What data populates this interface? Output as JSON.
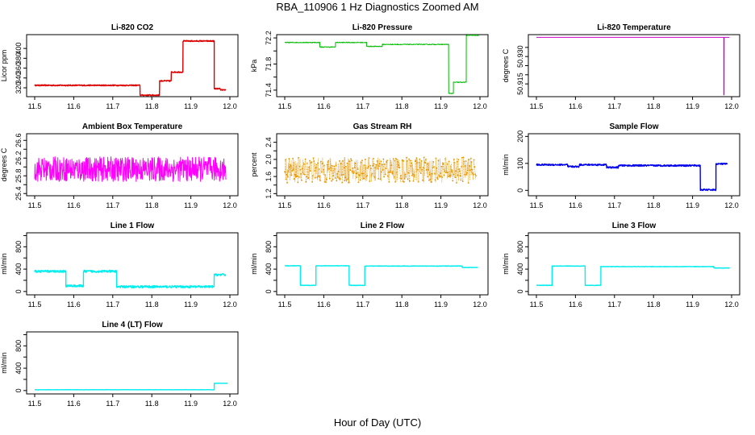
{
  "figure": {
    "title": "RBA_110906  1 Hz Diagnostics Zoomed AM",
    "xlabel": "Hour of Day (UTC)"
  },
  "chart_data": [
    {
      "id": "co2",
      "type": "line",
      "title": "Li-820 CO2",
      "ylabel": "Licor ppm",
      "color": "#dd0000",
      "xlim": [
        11.5,
        12.0
      ],
      "ylim": [
        302,
        428
      ],
      "xticks": [
        11.5,
        11.6,
        11.7,
        11.8,
        11.9,
        12.0
      ],
      "yticks": [
        320,
        340,
        360,
        380,
        400
      ],
      "noise": 1.2,
      "segments": [
        [
          11.5,
          11.77,
          325
        ],
        [
          11.77,
          11.82,
          305
        ],
        [
          11.82,
          11.85,
          334
        ],
        [
          11.85,
          11.88,
          352
        ],
        [
          11.88,
          11.96,
          415
        ],
        [
          11.96,
          11.975,
          318
        ],
        [
          11.975,
          11.99,
          316
        ]
      ]
    },
    {
      "id": "pressure",
      "type": "line",
      "title": "Li-820 Pressure",
      "ylabel": "kPa",
      "color": "#00bb00",
      "xlim": [
        11.5,
        12.0
      ],
      "ylim": [
        71.3,
        72.25
      ],
      "xticks": [
        11.5,
        11.6,
        11.7,
        11.8,
        11.9,
        12.0
      ],
      "yticks": [
        71.4,
        71.6,
        71.8,
        72.0,
        72.2
      ],
      "ytick_labels": [
        "71.4",
        "",
        "71.8",
        "",
        "72.2"
      ],
      "noise": 0.006,
      "segments": [
        [
          11.5,
          11.59,
          72.13
        ],
        [
          11.59,
          11.63,
          72.06
        ],
        [
          11.63,
          11.71,
          72.13
        ],
        [
          11.71,
          11.75,
          72.07
        ],
        [
          11.75,
          11.92,
          72.1
        ],
        [
          11.92,
          11.932,
          71.35
        ],
        [
          11.932,
          11.965,
          71.52
        ],
        [
          11.965,
          11.998,
          72.24
        ]
      ]
    },
    {
      "id": "li820temp",
      "type": "line",
      "title": "Li-820 Temperature",
      "ylabel": "degrees C",
      "color": "#cc00cc",
      "xlim": [
        11.5,
        12.0
      ],
      "ylim": [
        50.908,
        50.942
      ],
      "xticks": [
        11.5,
        11.6,
        11.7,
        11.8,
        11.9,
        12.0
      ],
      "yticks": [
        50.915,
        50.92,
        50.925,
        50.93,
        50.935
      ],
      "ytick_labels": [
        "50.915",
        "",
        "",
        "50.930",
        ""
      ],
      "noise": 0,
      "segments": [
        [
          11.5,
          11.98,
          50.9405
        ],
        [
          11.98,
          11.981,
          50.909
        ],
        [
          11.981,
          11.995,
          50.9405
        ]
      ]
    },
    {
      "id": "boxtemp",
      "type": "line",
      "title": "Ambient Box Temperature",
      "ylabel": "degrees C",
      "color": "#ff00ff",
      "xlim": [
        11.5,
        12.0
      ],
      "ylim": [
        25.35,
        26.75
      ],
      "xticks": [
        11.5,
        11.6,
        11.7,
        11.8,
        11.9,
        12.0
      ],
      "yticks": [
        25.4,
        25.6,
        25.8,
        26.0,
        26.2,
        26.4,
        26.6
      ],
      "ytick_labels": [
        "25.4",
        "",
        "25.8",
        "",
        "26.2",
        "",
        "26.6"
      ],
      "noise": 0.28,
      "segments": [
        [
          11.5,
          11.99,
          25.95
        ]
      ]
    },
    {
      "id": "rh",
      "type": "scatter",
      "title": "Gas Stream RH",
      "ylabel": "percent",
      "color": "#e69500",
      "xlim": [
        11.5,
        12.0
      ],
      "ylim": [
        1.15,
        2.6
      ],
      "xticks": [
        11.5,
        11.6,
        11.7,
        11.8,
        11.9,
        12.0
      ],
      "yticks": [
        1.2,
        1.4,
        1.6,
        1.8,
        2.0,
        2.2,
        2.4
      ],
      "ytick_labels": [
        "1.2",
        "",
        "1.6",
        "",
        "2.0",
        "",
        "2.4"
      ],
      "noise": 0.3,
      "segments": [
        [
          11.5,
          11.99,
          1.75
        ]
      ]
    },
    {
      "id": "sample",
      "type": "line",
      "title": "Sample Flow",
      "ylabel": "ml/min",
      "color": "#0000ee",
      "xlim": [
        11.5,
        12.0
      ],
      "ylim": [
        -20,
        210
      ],
      "xticks": [
        11.5,
        11.6,
        11.7,
        11.8,
        11.9,
        12.0
      ],
      "yticks": [
        0,
        100,
        200
      ],
      "noise": 3,
      "segments": [
        [
          11.5,
          11.58,
          95
        ],
        [
          11.58,
          11.61,
          88
        ],
        [
          11.61,
          11.68,
          95
        ],
        [
          11.68,
          11.71,
          85
        ],
        [
          11.71,
          11.92,
          92
        ],
        [
          11.92,
          11.96,
          2
        ],
        [
          11.96,
          11.99,
          98
        ]
      ]
    },
    {
      "id": "line1",
      "type": "line",
      "title": "Line 1 Flow",
      "ylabel": "ml/min",
      "color": "#00eeee",
      "xlim": [
        11.5,
        12.0
      ],
      "ylim": [
        -60,
        1050
      ],
      "xticks": [
        11.5,
        11.6,
        11.7,
        11.8,
        11.9,
        12.0
      ],
      "yticks": [
        0,
        200,
        400,
        600,
        800,
        1000
      ],
      "ytick_labels": [
        "0",
        "",
        "400",
        "",
        "800",
        ""
      ],
      "noise": 20,
      "segments": [
        [
          11.5,
          11.58,
          360
        ],
        [
          11.58,
          11.625,
          100
        ],
        [
          11.625,
          11.71,
          360
        ],
        [
          11.71,
          11.96,
          85
        ],
        [
          11.96,
          11.99,
          300
        ]
      ]
    },
    {
      "id": "line2",
      "type": "line",
      "title": "Line 2 Flow",
      "ylabel": "ml/min",
      "color": "#00eeee",
      "xlim": [
        11.5,
        12.0
      ],
      "ylim": [
        -60,
        1050
      ],
      "xticks": [
        11.5,
        11.6,
        11.7,
        11.8,
        11.9,
        12.0
      ],
      "yticks": [
        0,
        200,
        400,
        600,
        800,
        1000
      ],
      "ytick_labels": [
        "0",
        "",
        "400",
        "",
        "800",
        ""
      ],
      "noise": 4,
      "segments": [
        [
          11.5,
          11.54,
          460
        ],
        [
          11.54,
          11.58,
          110
        ],
        [
          11.58,
          11.665,
          460
        ],
        [
          11.665,
          11.705,
          110
        ],
        [
          11.705,
          11.955,
          455
        ],
        [
          11.955,
          11.995,
          430
        ]
      ]
    },
    {
      "id": "line3",
      "type": "line",
      "title": "Line 3 Flow",
      "ylabel": "ml/min",
      "color": "#00eeee",
      "xlim": [
        11.5,
        12.0
      ],
      "ylim": [
        -60,
        1050
      ],
      "xticks": [
        11.5,
        11.6,
        11.7,
        11.8,
        11.9,
        12.0
      ],
      "yticks": [
        0,
        200,
        400,
        600,
        800,
        1000
      ],
      "ytick_labels": [
        "0",
        "",
        "400",
        "",
        "800",
        ""
      ],
      "noise": 4,
      "segments": [
        [
          11.5,
          11.54,
          110
        ],
        [
          11.54,
          11.625,
          455
        ],
        [
          11.625,
          11.665,
          110
        ],
        [
          11.665,
          11.955,
          445
        ],
        [
          11.955,
          11.995,
          420
        ]
      ]
    },
    {
      "id": "line4",
      "type": "line",
      "title": "Line 4 (LT) Flow",
      "ylabel": "ml/min",
      "color": "#00eeee",
      "xlim": [
        11.5,
        12.0
      ],
      "ylim": [
        -60,
        1050
      ],
      "xticks": [
        11.5,
        11.6,
        11.7,
        11.8,
        11.9,
        12.0
      ],
      "yticks": [
        0,
        200,
        400,
        600,
        800,
        1000
      ],
      "ytick_labels": [
        "0",
        "",
        "400",
        "",
        "800",
        ""
      ],
      "noise": 2,
      "segments": [
        [
          11.5,
          11.96,
          15
        ],
        [
          11.96,
          11.995,
          130
        ]
      ]
    }
  ]
}
